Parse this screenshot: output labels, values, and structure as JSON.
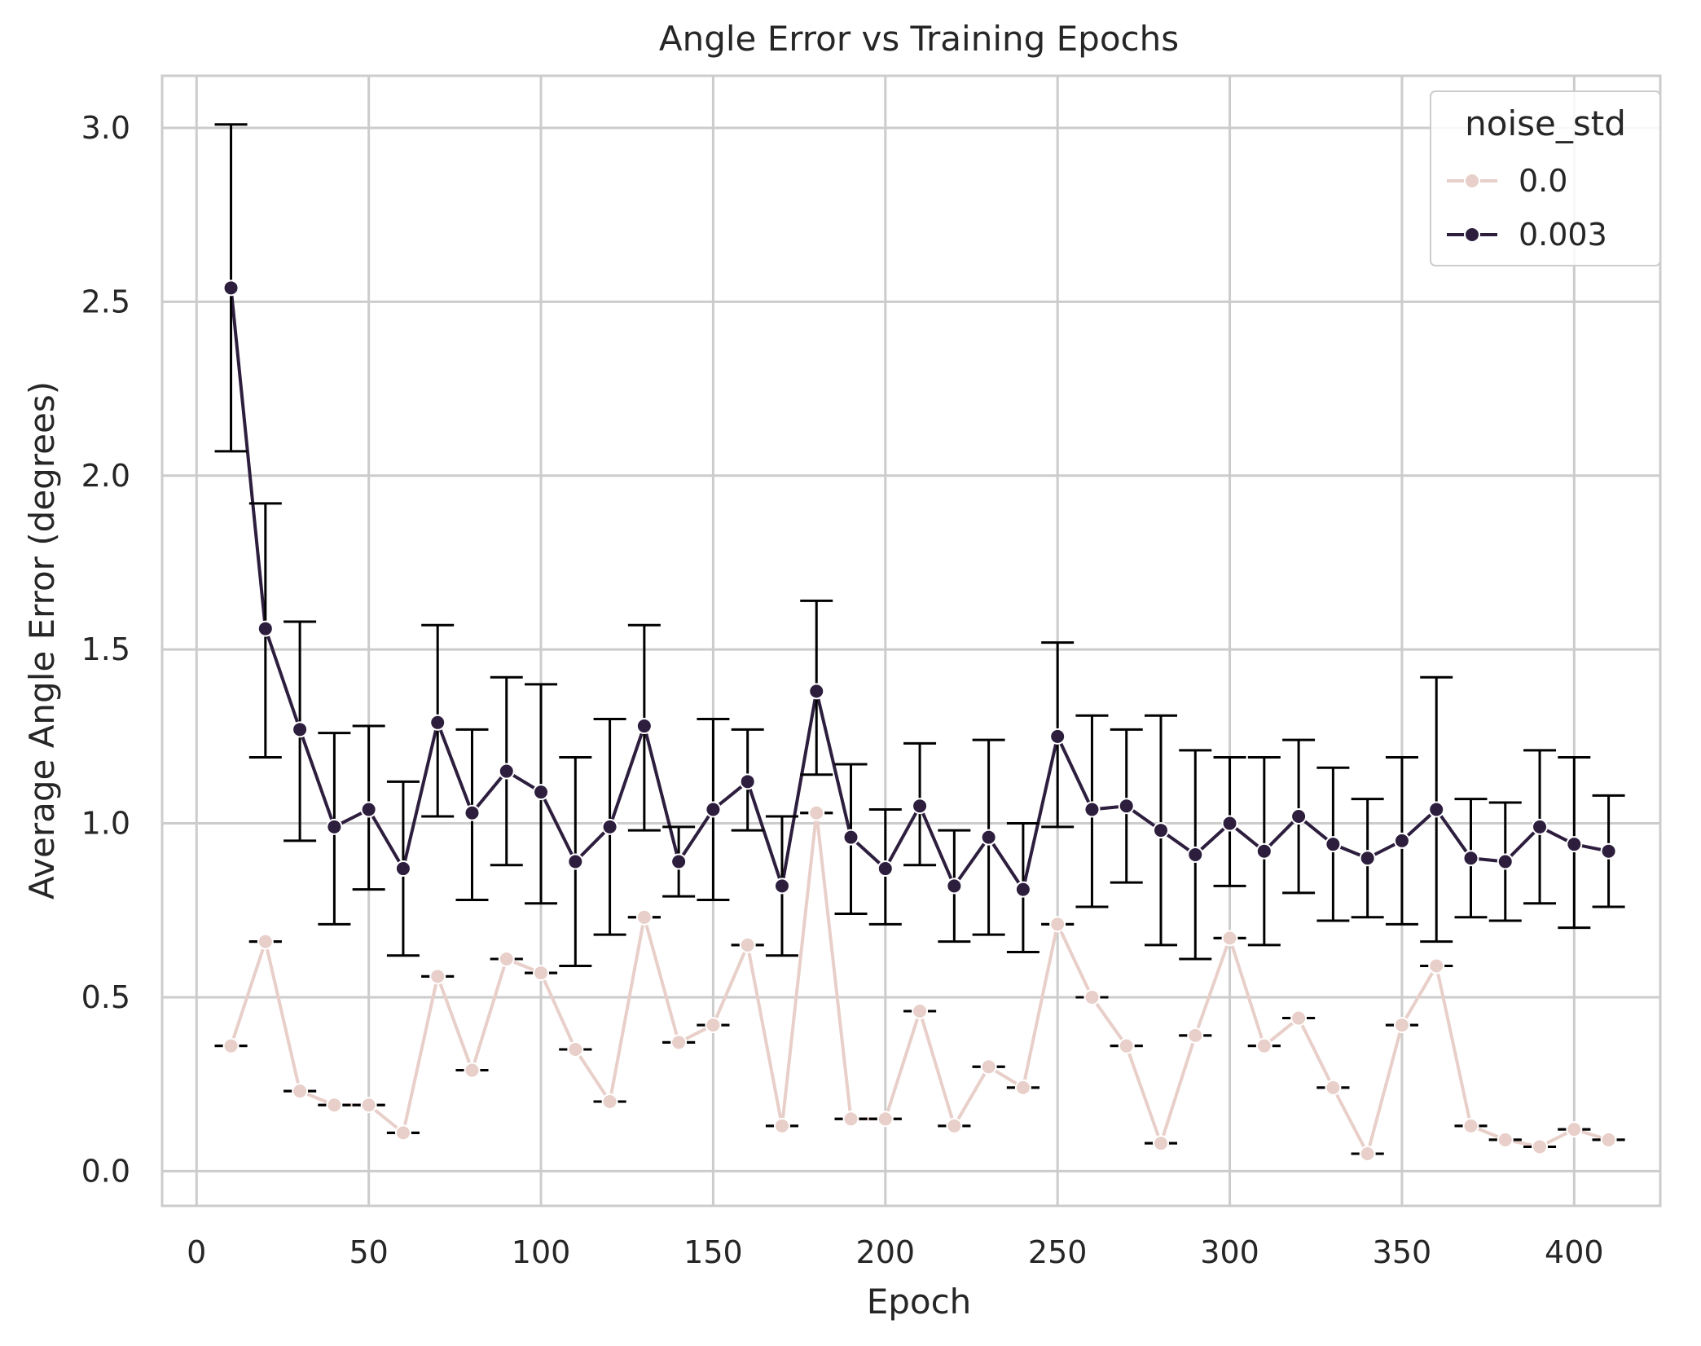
{
  "chart_data": {
    "type": "line",
    "title": "Angle Error vs Training Epochs",
    "xlabel": "Epoch",
    "ylabel": "Average Angle Error (degrees)",
    "xlim": [
      -10,
      425
    ],
    "ylim": [
      -0.1,
      3.15
    ],
    "xticks": [
      0,
      50,
      100,
      150,
      200,
      250,
      300,
      350,
      400
    ],
    "yticks": [
      0.0,
      0.5,
      1.0,
      1.5,
      2.0,
      2.5,
      3.0
    ],
    "xtick_labels": [
      "0",
      "50",
      "100",
      "150",
      "200",
      "250",
      "300",
      "350",
      "400"
    ],
    "ytick_labels": [
      "0.0",
      "0.5",
      "1.0",
      "1.5",
      "2.0",
      "2.5",
      "3.0"
    ],
    "grid": true,
    "legend": {
      "title": "noise_std",
      "placement": "top-right"
    },
    "x": [
      10,
      20,
      30,
      40,
      50,
      60,
      70,
      80,
      90,
      100,
      110,
      120,
      130,
      140,
      150,
      160,
      170,
      180,
      190,
      200,
      210,
      220,
      230,
      240,
      250,
      260,
      270,
      280,
      290,
      300,
      310,
      320,
      330,
      340,
      350,
      360,
      370,
      380,
      390,
      400,
      410
    ],
    "series": [
      {
        "name": "0.0",
        "color": "#e8cfc9",
        "values": [
          0.36,
          0.66,
          0.23,
          0.19,
          0.19,
          0.11,
          0.56,
          0.29,
          0.61,
          0.57,
          0.35,
          0.2,
          0.73,
          0.37,
          0.42,
          0.65,
          0.13,
          1.03,
          0.15,
          0.15,
          0.46,
          0.13,
          0.3,
          0.24,
          0.71,
          0.5,
          0.36,
          0.08,
          0.39,
          0.67,
          0.36,
          0.44,
          0.24,
          0.05,
          0.42,
          0.59,
          0.13,
          0.09,
          0.07,
          0.12,
          0.09
        ],
        "err_low": [
          0.36,
          0.66,
          0.23,
          0.19,
          0.19,
          0.11,
          0.56,
          0.29,
          0.61,
          0.57,
          0.35,
          0.2,
          0.73,
          0.37,
          0.42,
          0.65,
          0.13,
          1.03,
          0.15,
          0.15,
          0.46,
          0.13,
          0.3,
          0.24,
          0.71,
          0.5,
          0.36,
          0.08,
          0.39,
          0.67,
          0.36,
          0.44,
          0.24,
          0.05,
          0.42,
          0.59,
          0.13,
          0.09,
          0.07,
          0.12,
          0.09
        ],
        "err_high": [
          0.36,
          0.66,
          0.23,
          0.19,
          0.19,
          0.11,
          0.56,
          0.29,
          0.61,
          0.57,
          0.35,
          0.2,
          0.73,
          0.37,
          0.42,
          0.65,
          0.13,
          1.03,
          0.15,
          0.15,
          0.46,
          0.13,
          0.3,
          0.24,
          0.71,
          0.5,
          0.36,
          0.08,
          0.39,
          0.67,
          0.36,
          0.44,
          0.24,
          0.05,
          0.42,
          0.59,
          0.13,
          0.09,
          0.07,
          0.12,
          0.09
        ]
      },
      {
        "name": "0.003",
        "color": "#2d1e3e",
        "values": [
          2.54,
          1.56,
          1.27,
          0.99,
          1.04,
          0.87,
          1.29,
          1.03,
          1.15,
          1.09,
          0.89,
          0.99,
          1.28,
          0.89,
          1.04,
          1.12,
          0.82,
          1.38,
          0.96,
          0.87,
          1.05,
          0.82,
          0.96,
          0.81,
          1.25,
          1.04,
          1.05,
          0.98,
          0.91,
          1.0,
          0.92,
          1.02,
          0.94,
          0.9,
          0.95,
          1.04,
          0.9,
          0.89,
          0.99,
          0.94,
          0.92
        ],
        "err_low": [
          2.07,
          1.19,
          0.95,
          0.71,
          0.81,
          0.62,
          1.02,
          0.78,
          0.88,
          0.77,
          0.59,
          0.68,
          0.98,
          0.79,
          0.78,
          0.98,
          0.62,
          1.14,
          0.74,
          0.71,
          0.88,
          0.66,
          0.68,
          0.63,
          0.99,
          0.76,
          0.83,
          0.65,
          0.61,
          0.82,
          0.65,
          0.8,
          0.72,
          0.73,
          0.71,
          0.66,
          0.73,
          0.72,
          0.77,
          0.7,
          0.76
        ],
        "err_high": [
          3.01,
          1.92,
          1.58,
          1.26,
          1.28,
          1.12,
          1.57,
          1.27,
          1.42,
          1.4,
          1.19,
          1.3,
          1.57,
          0.99,
          1.3,
          1.27,
          1.02,
          1.64,
          1.17,
          1.04,
          1.23,
          0.98,
          1.24,
          1.0,
          1.52,
          1.31,
          1.27,
          1.31,
          1.21,
          1.19,
          1.19,
          1.24,
          1.16,
          1.07,
          1.19,
          1.42,
          1.07,
          1.06,
          1.21,
          1.19,
          1.08
        ]
      }
    ]
  }
}
